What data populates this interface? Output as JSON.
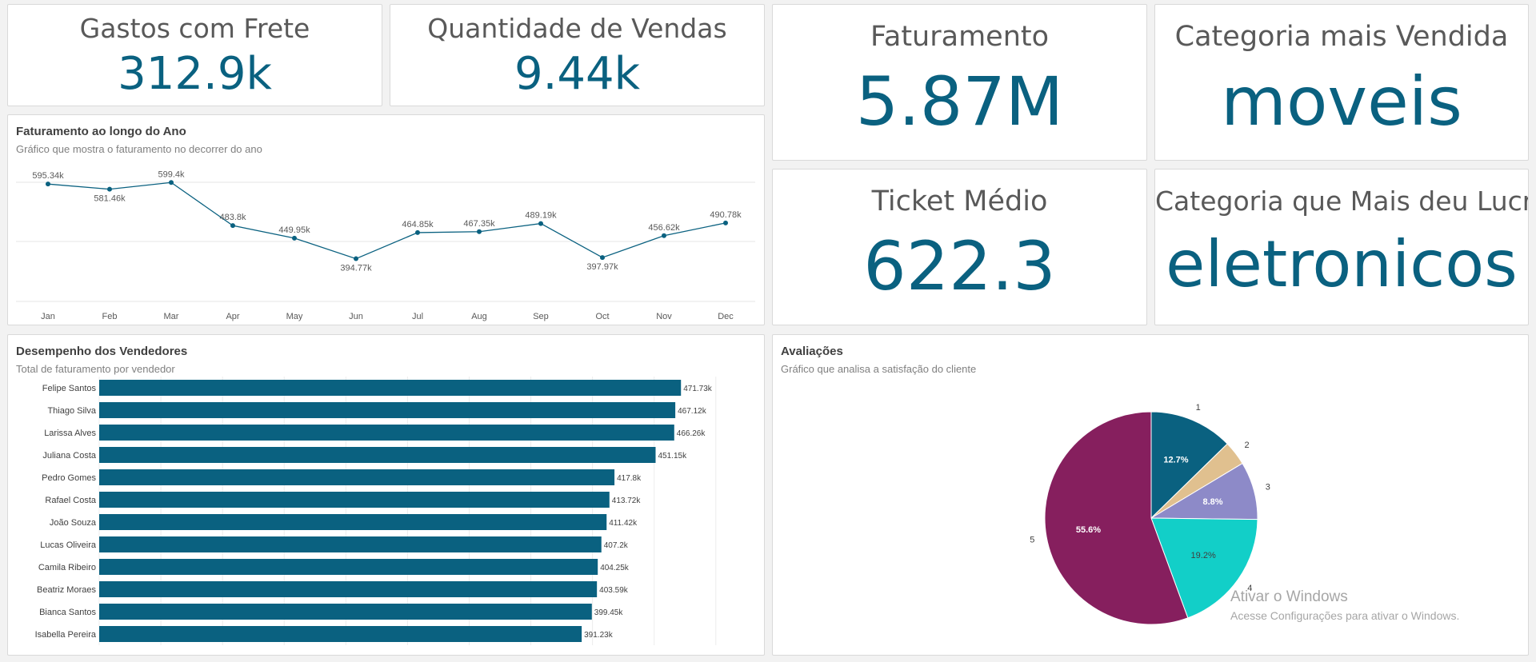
{
  "kpis": {
    "frete": {
      "title": "Gastos com Frete",
      "value": "312.9k"
    },
    "vendas": {
      "title": "Quantidade de Vendas",
      "value": "9.44k"
    },
    "faturamento": {
      "title": "Faturamento",
      "value": "5.87M"
    },
    "categoria_vendida": {
      "title": "Categoria mais Vendida",
      "value": "moveis"
    },
    "ticket": {
      "title": "Ticket Médio",
      "value": "622.3"
    },
    "categoria_lucro": {
      "title": "Categoria que Mais deu Lucro",
      "value": "eletronicos"
    }
  },
  "line_panel": {
    "title": "Faturamento ao longo do Ano",
    "subtitle": "Gráfico que mostra o faturamento no decorrer do ano"
  },
  "bar_panel": {
    "title": "Desempenho dos Vendedores",
    "subtitle": "Total de faturamento por vendedor"
  },
  "pie_panel": {
    "title": "Avaliações",
    "subtitle": "Gráfico que analisa a satisfação do cliente"
  },
  "watermark": {
    "title": "Ativar o Windows",
    "text": "Acesse Configurações para ativar o Windows."
  },
  "colors": {
    "primary": "#0a6180",
    "pie": [
      "#0a6180",
      "#e0c08f",
      "#8d8ac8",
      "#12cfc8",
      "#861f5e"
    ]
  },
  "chart_data": [
    {
      "type": "line",
      "title": "Faturamento ao longo do Ano",
      "subtitle": "Gráfico que mostra o faturamento no decorrer do ano",
      "x": [
        "Jan",
        "Feb",
        "Mar",
        "Apr",
        "May",
        "Jun",
        "Jul",
        "Aug",
        "Sep",
        "Oct",
        "Nov",
        "Dec"
      ],
      "values": [
        595340,
        581460,
        599400,
        483800,
        449950,
        394770,
        464850,
        467350,
        489190,
        397970,
        456620,
        490780
      ],
      "labels": [
        "595.34k",
        "581.46k",
        "599.4k",
        "483.8k",
        "449.95k",
        "394.77k",
        "464.85k",
        "467.35k",
        "489.19k",
        "397.97k",
        "456.62k",
        "490.78k"
      ],
      "ylim": [
        200000,
        600000
      ],
      "grid": true
    },
    {
      "type": "bar",
      "orientation": "horizontal",
      "title": "Desempenho dos Vendedores",
      "subtitle": "Total de faturamento por vendedor",
      "categories": [
        "Felipe Santos",
        "Thiago Silva",
        "Larissa Alves",
        "Juliana Costa",
        "Pedro Gomes",
        "Rafael Costa",
        "João Souza",
        "Lucas Oliveira",
        "Camila Ribeiro",
        "Beatriz Moraes",
        "Bianca Santos",
        "Isabella Pereira"
      ],
      "values": [
        471730,
        467120,
        466260,
        451150,
        417800,
        413720,
        411420,
        407200,
        404250,
        403590,
        399450,
        391230
      ],
      "labels": [
        "471.73k",
        "467.12k",
        "466.26k",
        "451.15k",
        "417.8k",
        "413.72k",
        "411.42k",
        "407.2k",
        "404.25k",
        "403.59k",
        "399.45k",
        "391.23k"
      ],
      "xlim": [
        0,
        500000
      ],
      "grid": true
    },
    {
      "type": "pie",
      "title": "Avaliações",
      "subtitle": "Gráfico que analisa a satisfação do cliente",
      "categories": [
        "1",
        "2",
        "3",
        "4",
        "5"
      ],
      "values": [
        12.7,
        3.7,
        8.8,
        19.2,
        55.6
      ],
      "labels": [
        "12.7%",
        "",
        "8.8%",
        "19.2%",
        "55.6%"
      ]
    }
  ]
}
